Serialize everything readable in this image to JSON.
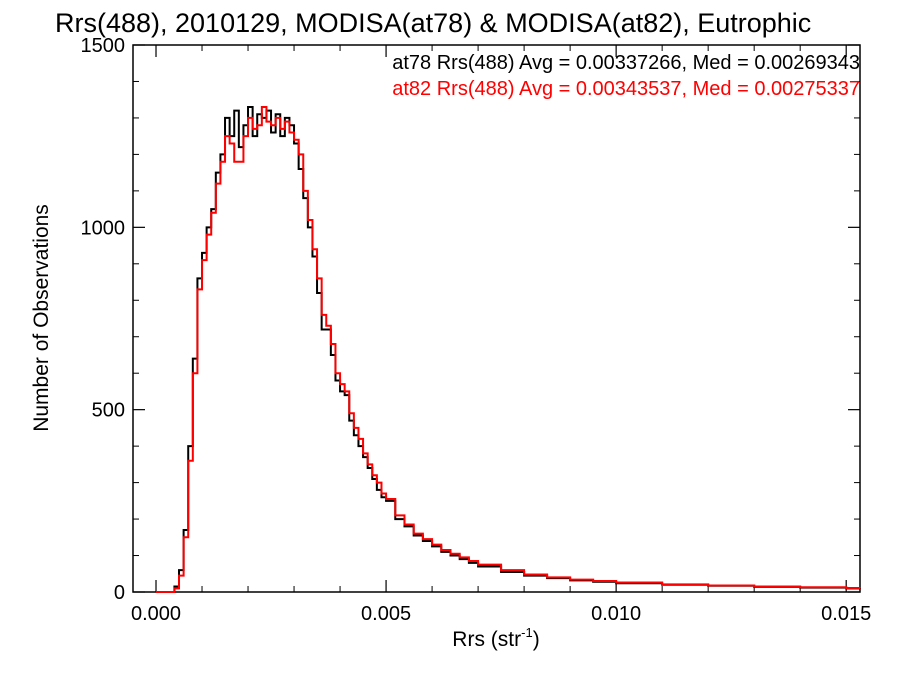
{
  "chart_data": {
    "type": "line",
    "title": "Rrs(488), 2010129, MODISA(at78) & MODISA(at82), Eutrophic",
    "xlabel": "Rrs (str",
    "xlabel_sup": "-1",
    "xlabel_close": ")",
    "ylabel": "Number of Observations",
    "xlim": [
      -0.0005,
      0.0153
    ],
    "ylim": [
      0,
      1500
    ],
    "x_ticks": [
      0.0,
      0.005,
      0.01,
      0.015
    ],
    "x_tick_labels": [
      "0.000",
      "0.005",
      "0.010",
      "0.015"
    ],
    "y_ticks": [
      0,
      500,
      1000,
      1500
    ],
    "y_tick_labels": [
      "0",
      "500",
      "1000",
      "1500"
    ],
    "grid": false,
    "legend_position": "top-right",
    "series": [
      {
        "name": "at78",
        "legend": "at78 Rrs(488) Avg = 0.00337266, Med = 0.00269343",
        "color": "#000000",
        "points": [
          [
            0.0,
            0
          ],
          [
            0.0003,
            0
          ],
          [
            0.0004,
            15
          ],
          [
            0.0005,
            60
          ],
          [
            0.0006,
            170
          ],
          [
            0.0007,
            400
          ],
          [
            0.0008,
            640
          ],
          [
            0.0009,
            860
          ],
          [
            0.001,
            930
          ],
          [
            0.0011,
            1000
          ],
          [
            0.0012,
            1050
          ],
          [
            0.0013,
            1150
          ],
          [
            0.0014,
            1200
          ],
          [
            0.0015,
            1300
          ],
          [
            0.0016,
            1250
          ],
          [
            0.0017,
            1320
          ],
          [
            0.0018,
            1220
          ],
          [
            0.0019,
            1280
          ],
          [
            0.002,
            1330
          ],
          [
            0.0021,
            1250
          ],
          [
            0.0022,
            1310
          ],
          [
            0.0023,
            1300
          ],
          [
            0.0024,
            1320
          ],
          [
            0.0025,
            1260
          ],
          [
            0.0026,
            1310
          ],
          [
            0.0027,
            1250
          ],
          [
            0.0028,
            1300
          ],
          [
            0.0029,
            1280
          ],
          [
            0.003,
            1230
          ],
          [
            0.0031,
            1160
          ],
          [
            0.0032,
            1080
          ],
          [
            0.0033,
            1000
          ],
          [
            0.0034,
            920
          ],
          [
            0.0035,
            820
          ],
          [
            0.0036,
            720
          ],
          [
            0.0037,
            720
          ],
          [
            0.0038,
            650
          ],
          [
            0.0039,
            580
          ],
          [
            0.004,
            550
          ],
          [
            0.0041,
            540
          ],
          [
            0.0042,
            470
          ],
          [
            0.0043,
            430
          ],
          [
            0.0044,
            400
          ],
          [
            0.0045,
            370
          ],
          [
            0.0046,
            340
          ],
          [
            0.0047,
            310
          ],
          [
            0.0048,
            280
          ],
          [
            0.0049,
            260
          ],
          [
            0.005,
            250
          ],
          [
            0.0052,
            200
          ],
          [
            0.0054,
            180
          ],
          [
            0.0056,
            155
          ],
          [
            0.0058,
            140
          ],
          [
            0.006,
            125
          ],
          [
            0.0062,
            110
          ],
          [
            0.0064,
            100
          ],
          [
            0.0066,
            90
          ],
          [
            0.0068,
            80
          ],
          [
            0.007,
            70
          ],
          [
            0.0075,
            55
          ],
          [
            0.008,
            45
          ],
          [
            0.0085,
            38
          ],
          [
            0.009,
            32
          ],
          [
            0.0095,
            28
          ],
          [
            0.01,
            24
          ],
          [
            0.011,
            20
          ],
          [
            0.012,
            17
          ],
          [
            0.013,
            14
          ],
          [
            0.014,
            12
          ],
          [
            0.015,
            10
          ],
          [
            0.0153,
            9
          ]
        ]
      },
      {
        "name": "at82",
        "legend": "at82 Rrs(488) Avg = 0.00343537, Med = 0.00275337",
        "color": "#ff0000",
        "points": [
          [
            0.0,
            0
          ],
          [
            0.0003,
            0
          ],
          [
            0.0004,
            10
          ],
          [
            0.0005,
            45
          ],
          [
            0.0006,
            150
          ],
          [
            0.0007,
            360
          ],
          [
            0.0008,
            600
          ],
          [
            0.0009,
            830
          ],
          [
            0.001,
            910
          ],
          [
            0.0011,
            980
          ],
          [
            0.0012,
            1040
          ],
          [
            0.0013,
            1120
          ],
          [
            0.0014,
            1180
          ],
          [
            0.0015,
            1250
          ],
          [
            0.0016,
            1230
          ],
          [
            0.0017,
            1180
          ],
          [
            0.0018,
            1180
          ],
          [
            0.0019,
            1250
          ],
          [
            0.002,
            1300
          ],
          [
            0.0021,
            1270
          ],
          [
            0.0022,
            1280
          ],
          [
            0.0023,
            1330
          ],
          [
            0.0024,
            1290
          ],
          [
            0.0025,
            1280
          ],
          [
            0.0026,
            1300
          ],
          [
            0.0027,
            1270
          ],
          [
            0.0028,
            1290
          ],
          [
            0.0029,
            1260
          ],
          [
            0.003,
            1240
          ],
          [
            0.0031,
            1200
          ],
          [
            0.0032,
            1100
          ],
          [
            0.0033,
            1020
          ],
          [
            0.0034,
            940
          ],
          [
            0.0035,
            860
          ],
          [
            0.0036,
            760
          ],
          [
            0.0037,
            730
          ],
          [
            0.0038,
            680
          ],
          [
            0.0039,
            600
          ],
          [
            0.004,
            570
          ],
          [
            0.0041,
            550
          ],
          [
            0.0042,
            490
          ],
          [
            0.0043,
            450
          ],
          [
            0.0044,
            420
          ],
          [
            0.0045,
            380
          ],
          [
            0.0046,
            350
          ],
          [
            0.0047,
            320
          ],
          [
            0.0048,
            300
          ],
          [
            0.0049,
            270
          ],
          [
            0.005,
            255
          ],
          [
            0.0052,
            210
          ],
          [
            0.0054,
            185
          ],
          [
            0.0056,
            160
          ],
          [
            0.0058,
            145
          ],
          [
            0.006,
            130
          ],
          [
            0.0062,
            115
          ],
          [
            0.0064,
            105
          ],
          [
            0.0066,
            95
          ],
          [
            0.0068,
            85
          ],
          [
            0.007,
            75
          ],
          [
            0.0075,
            60
          ],
          [
            0.008,
            48
          ],
          [
            0.0085,
            40
          ],
          [
            0.009,
            34
          ],
          [
            0.0095,
            30
          ],
          [
            0.01,
            26
          ],
          [
            0.011,
            21
          ],
          [
            0.012,
            18
          ],
          [
            0.013,
            15
          ],
          [
            0.014,
            13
          ],
          [
            0.015,
            11
          ],
          [
            0.0153,
            10
          ]
        ]
      }
    ]
  }
}
